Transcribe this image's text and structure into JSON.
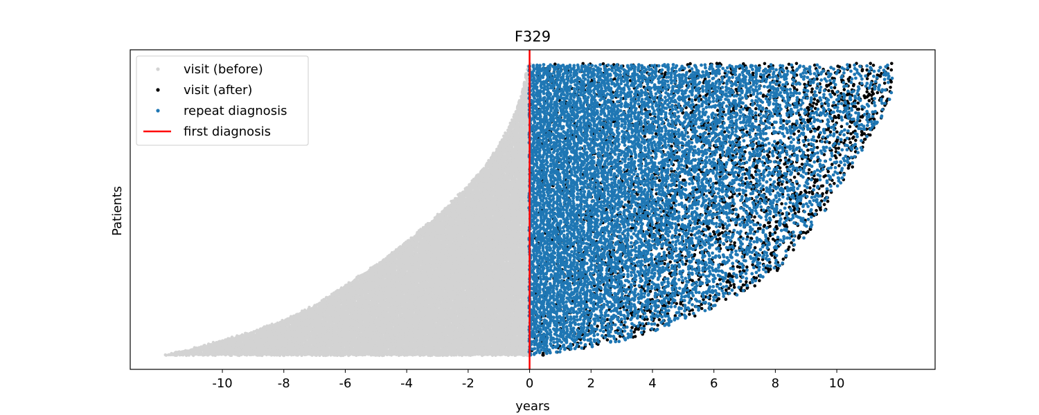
{
  "chart_data": {
    "type": "scatter",
    "title": "F329",
    "xlabel": "years",
    "ylabel": "Patients",
    "xlim": [
      -13.0,
      13.2
    ],
    "xticks": [
      -10,
      -8,
      -6,
      -4,
      -2,
      0,
      2,
      4,
      6,
      8,
      10
    ],
    "xtick_labels": [
      "-10",
      "-8",
      "-6",
      "-4",
      "-2",
      "0",
      "2",
      "4",
      "6",
      "8",
      "10"
    ],
    "yticks_visible": false,
    "grid": false,
    "legend_position": "top-left",
    "series": [
      {
        "name": "visit (before)",
        "kind": "scatter",
        "color": "#d3d3d3",
        "envelope_x": [
          -0.05,
          -0.25,
          -0.6,
          -1.0,
          -1.6,
          -2.2,
          -3.0,
          -4.0,
          -5.0,
          -6.0,
          -7.0,
          -8.0,
          -9.0,
          -10.0,
          -11.0,
          -11.9
        ],
        "envelope_patient_fraction": [
          1.0,
          0.9,
          0.8,
          0.72,
          0.63,
          0.56,
          0.48,
          0.39,
          0.31,
          0.24,
          0.17,
          0.12,
          0.08,
          0.05,
          0.02,
          0.0
        ]
      },
      {
        "name": "visit (after)",
        "kind": "scatter",
        "color": "#000000",
        "envelope_x": [
          11.8,
          11.8,
          11.5,
          11.0,
          10.5,
          10.0,
          9.5,
          9.0,
          8.5,
          8.0,
          7.0,
          6.0,
          5.0,
          4.0,
          3.0,
          2.0,
          1.0,
          0.5
        ],
        "envelope_patient_fraction": [
          1.0,
          0.9,
          0.82,
          0.74,
          0.64,
          0.56,
          0.48,
          0.41,
          0.34,
          0.28,
          0.22,
          0.16,
          0.12,
          0.08,
          0.05,
          0.025,
          0.01,
          0.0
        ]
      },
      {
        "name": "repeat diagnosis",
        "kind": "scatter",
        "color": "#1f77b4",
        "envelope_x": [
          11.8,
          11.8,
          11.5,
          11.0,
          10.5,
          10.0,
          9.5,
          9.0,
          8.5,
          8.0,
          7.0,
          6.0,
          5.0,
          4.0,
          3.0,
          2.0,
          1.0,
          0.5
        ],
        "envelope_patient_fraction": [
          1.0,
          0.9,
          0.82,
          0.74,
          0.64,
          0.56,
          0.48,
          0.41,
          0.34,
          0.28,
          0.22,
          0.16,
          0.12,
          0.08,
          0.05,
          0.025,
          0.01,
          0.0
        ]
      },
      {
        "name": "first diagnosis",
        "kind": "vline",
        "color": "#ff0000",
        "x": 0
      }
    ]
  }
}
